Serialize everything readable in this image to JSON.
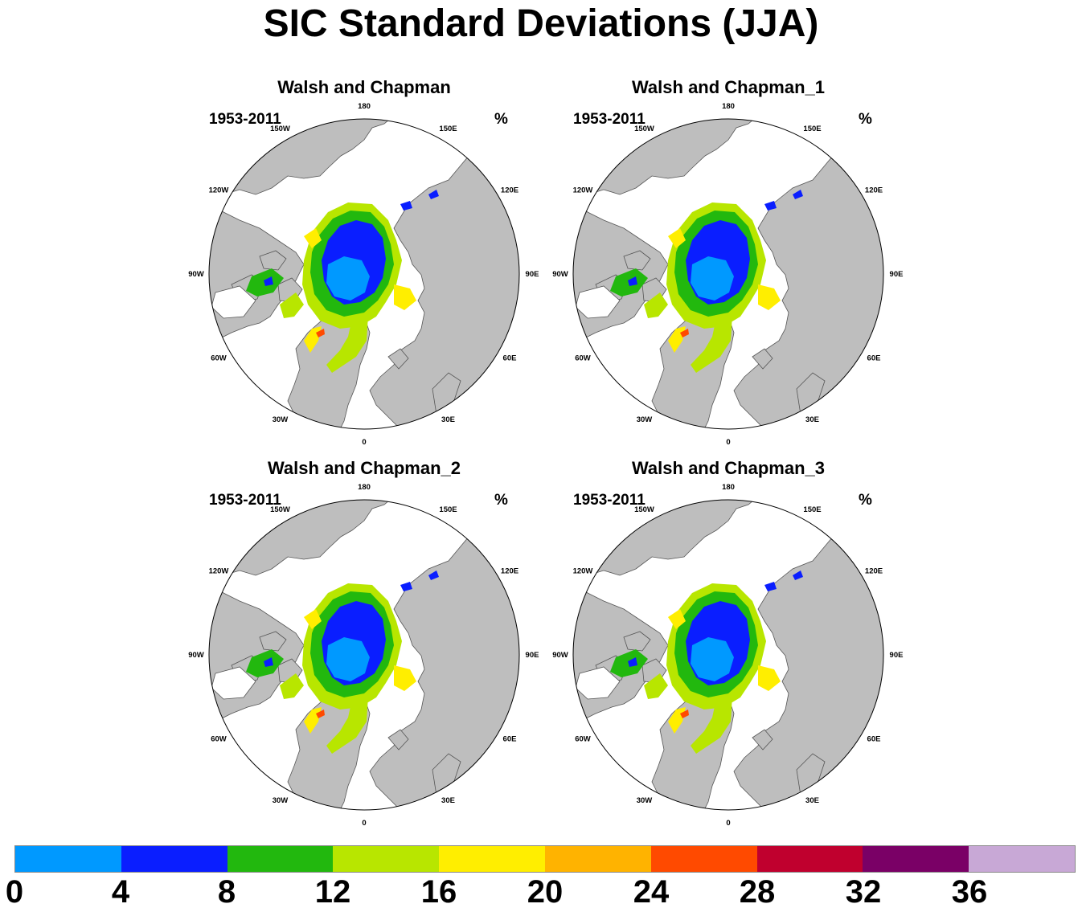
{
  "title": "SIC Standard Deviations (JJA)",
  "panels": [
    {
      "title": "Walsh and Chapman",
      "period": "1953-2011",
      "units": "%"
    },
    {
      "title": "Walsh and Chapman_1",
      "period": "1953-2011",
      "units": "%"
    },
    {
      "title": "Walsh and Chapman_2",
      "period": "1953-2011",
      "units": "%"
    },
    {
      "title": "Walsh and Chapman_3",
      "period": "1953-2011",
      "units": "%"
    }
  ],
  "longitude_labels": [
    "180",
    "150E",
    "120E",
    "90E",
    "60E",
    "30E",
    "0",
    "30W",
    "60W",
    "90W",
    "120W",
    "150W"
  ],
  "colorbar": {
    "labels": [
      "0",
      "4",
      "8",
      "12",
      "16",
      "20",
      "24",
      "28",
      "32",
      "36"
    ],
    "colors": [
      "#0099ff",
      "#0a1eff",
      "#22b80e",
      "#b8e600",
      "#ffee00",
      "#ffb300",
      "#ff4a00",
      "#c0002e",
      "#7a0066",
      "#c8a8d6"
    ]
  },
  "colors": {
    "land": "#bebebe",
    "ocean": "#ffffff",
    "coast": "#555555"
  }
}
